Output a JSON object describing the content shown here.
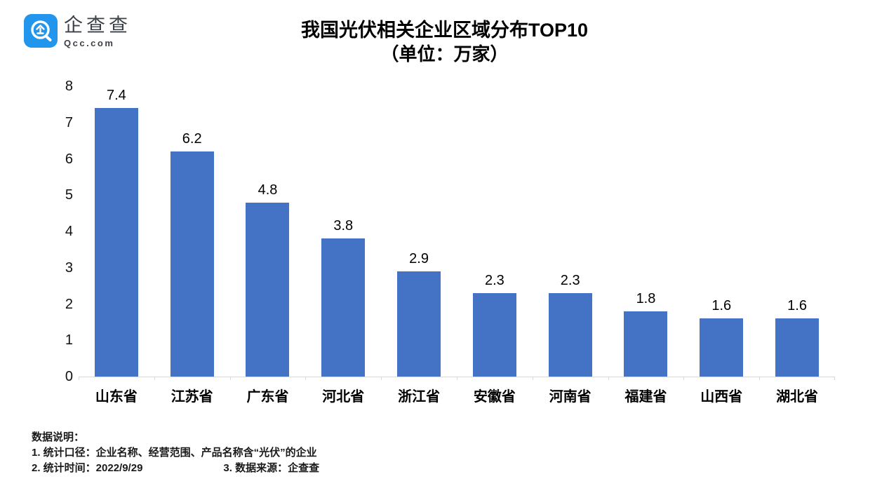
{
  "logo": {
    "brand": "企查查",
    "domain": "Qcc.com",
    "icon_color": "#2196EC"
  },
  "title": {
    "line1": "我国光伏相关企业区域分布TOP10",
    "line2": "（单位：万家）"
  },
  "chart_data": {
    "type": "bar",
    "title": "我国光伏相关企业区域分布TOP10（单位：万家）",
    "unit": "万家",
    "categories": [
      "山东省",
      "江苏省",
      "广东省",
      "河北省",
      "浙江省",
      "安徽省",
      "河南省",
      "福建省",
      "山西省",
      "湖北省"
    ],
    "values": [
      7.4,
      6.2,
      4.8,
      3.8,
      2.9,
      2.3,
      2.3,
      1.8,
      1.6,
      1.6
    ],
    "xlabel": "",
    "ylabel": "",
    "ylim": [
      0,
      8
    ],
    "yticks": [
      0,
      1,
      2,
      3,
      4,
      5,
      6,
      7,
      8
    ],
    "bar_color": "#4472C4",
    "axis_line_color": "#d9d9d9",
    "grid": false,
    "legend": false,
    "data_labels": true
  },
  "notes": {
    "heading": "数据说明：",
    "line1": "1. 统计口径：企业名称、经营范围、产品名称含“光伏”的企业",
    "line2": "2. 统计时间：2022/9/29",
    "line3": "3. 数据来源：企查查"
  }
}
